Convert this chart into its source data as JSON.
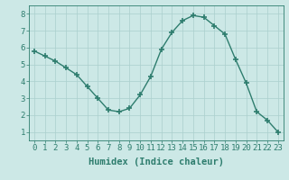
{
  "xlabel": "Humidex (Indice chaleur)",
  "x": [
    0,
    1,
    2,
    3,
    4,
    5,
    6,
    7,
    8,
    9,
    10,
    11,
    12,
    13,
    14,
    15,
    16,
    17,
    18,
    19,
    20,
    21,
    22,
    23
  ],
  "y": [
    5.8,
    5.5,
    5.2,
    4.8,
    4.4,
    3.7,
    3.0,
    2.3,
    2.2,
    2.4,
    3.2,
    4.3,
    5.9,
    6.9,
    7.6,
    7.9,
    7.8,
    7.3,
    6.8,
    5.3,
    3.9,
    2.2,
    1.7,
    1.0
  ],
  "xlim": [
    -0.5,
    23.5
  ],
  "ylim": [
    0.5,
    8.5
  ],
  "xticks": [
    0,
    1,
    2,
    3,
    4,
    5,
    6,
    7,
    8,
    9,
    10,
    11,
    12,
    13,
    14,
    15,
    16,
    17,
    18,
    19,
    20,
    21,
    22,
    23
  ],
  "yticks": [
    1,
    2,
    3,
    4,
    5,
    6,
    7,
    8
  ],
  "line_color": "#2e7d6e",
  "marker": "+",
  "bg_color": "#cce8e6",
  "grid_color": "#aacfcd",
  "text_color": "#2e7d6e",
  "xlabel_fontsize": 7.5,
  "tick_fontsize": 6.5,
  "linewidth": 1.0,
  "markersize": 4,
  "markeredgewidth": 1.2
}
